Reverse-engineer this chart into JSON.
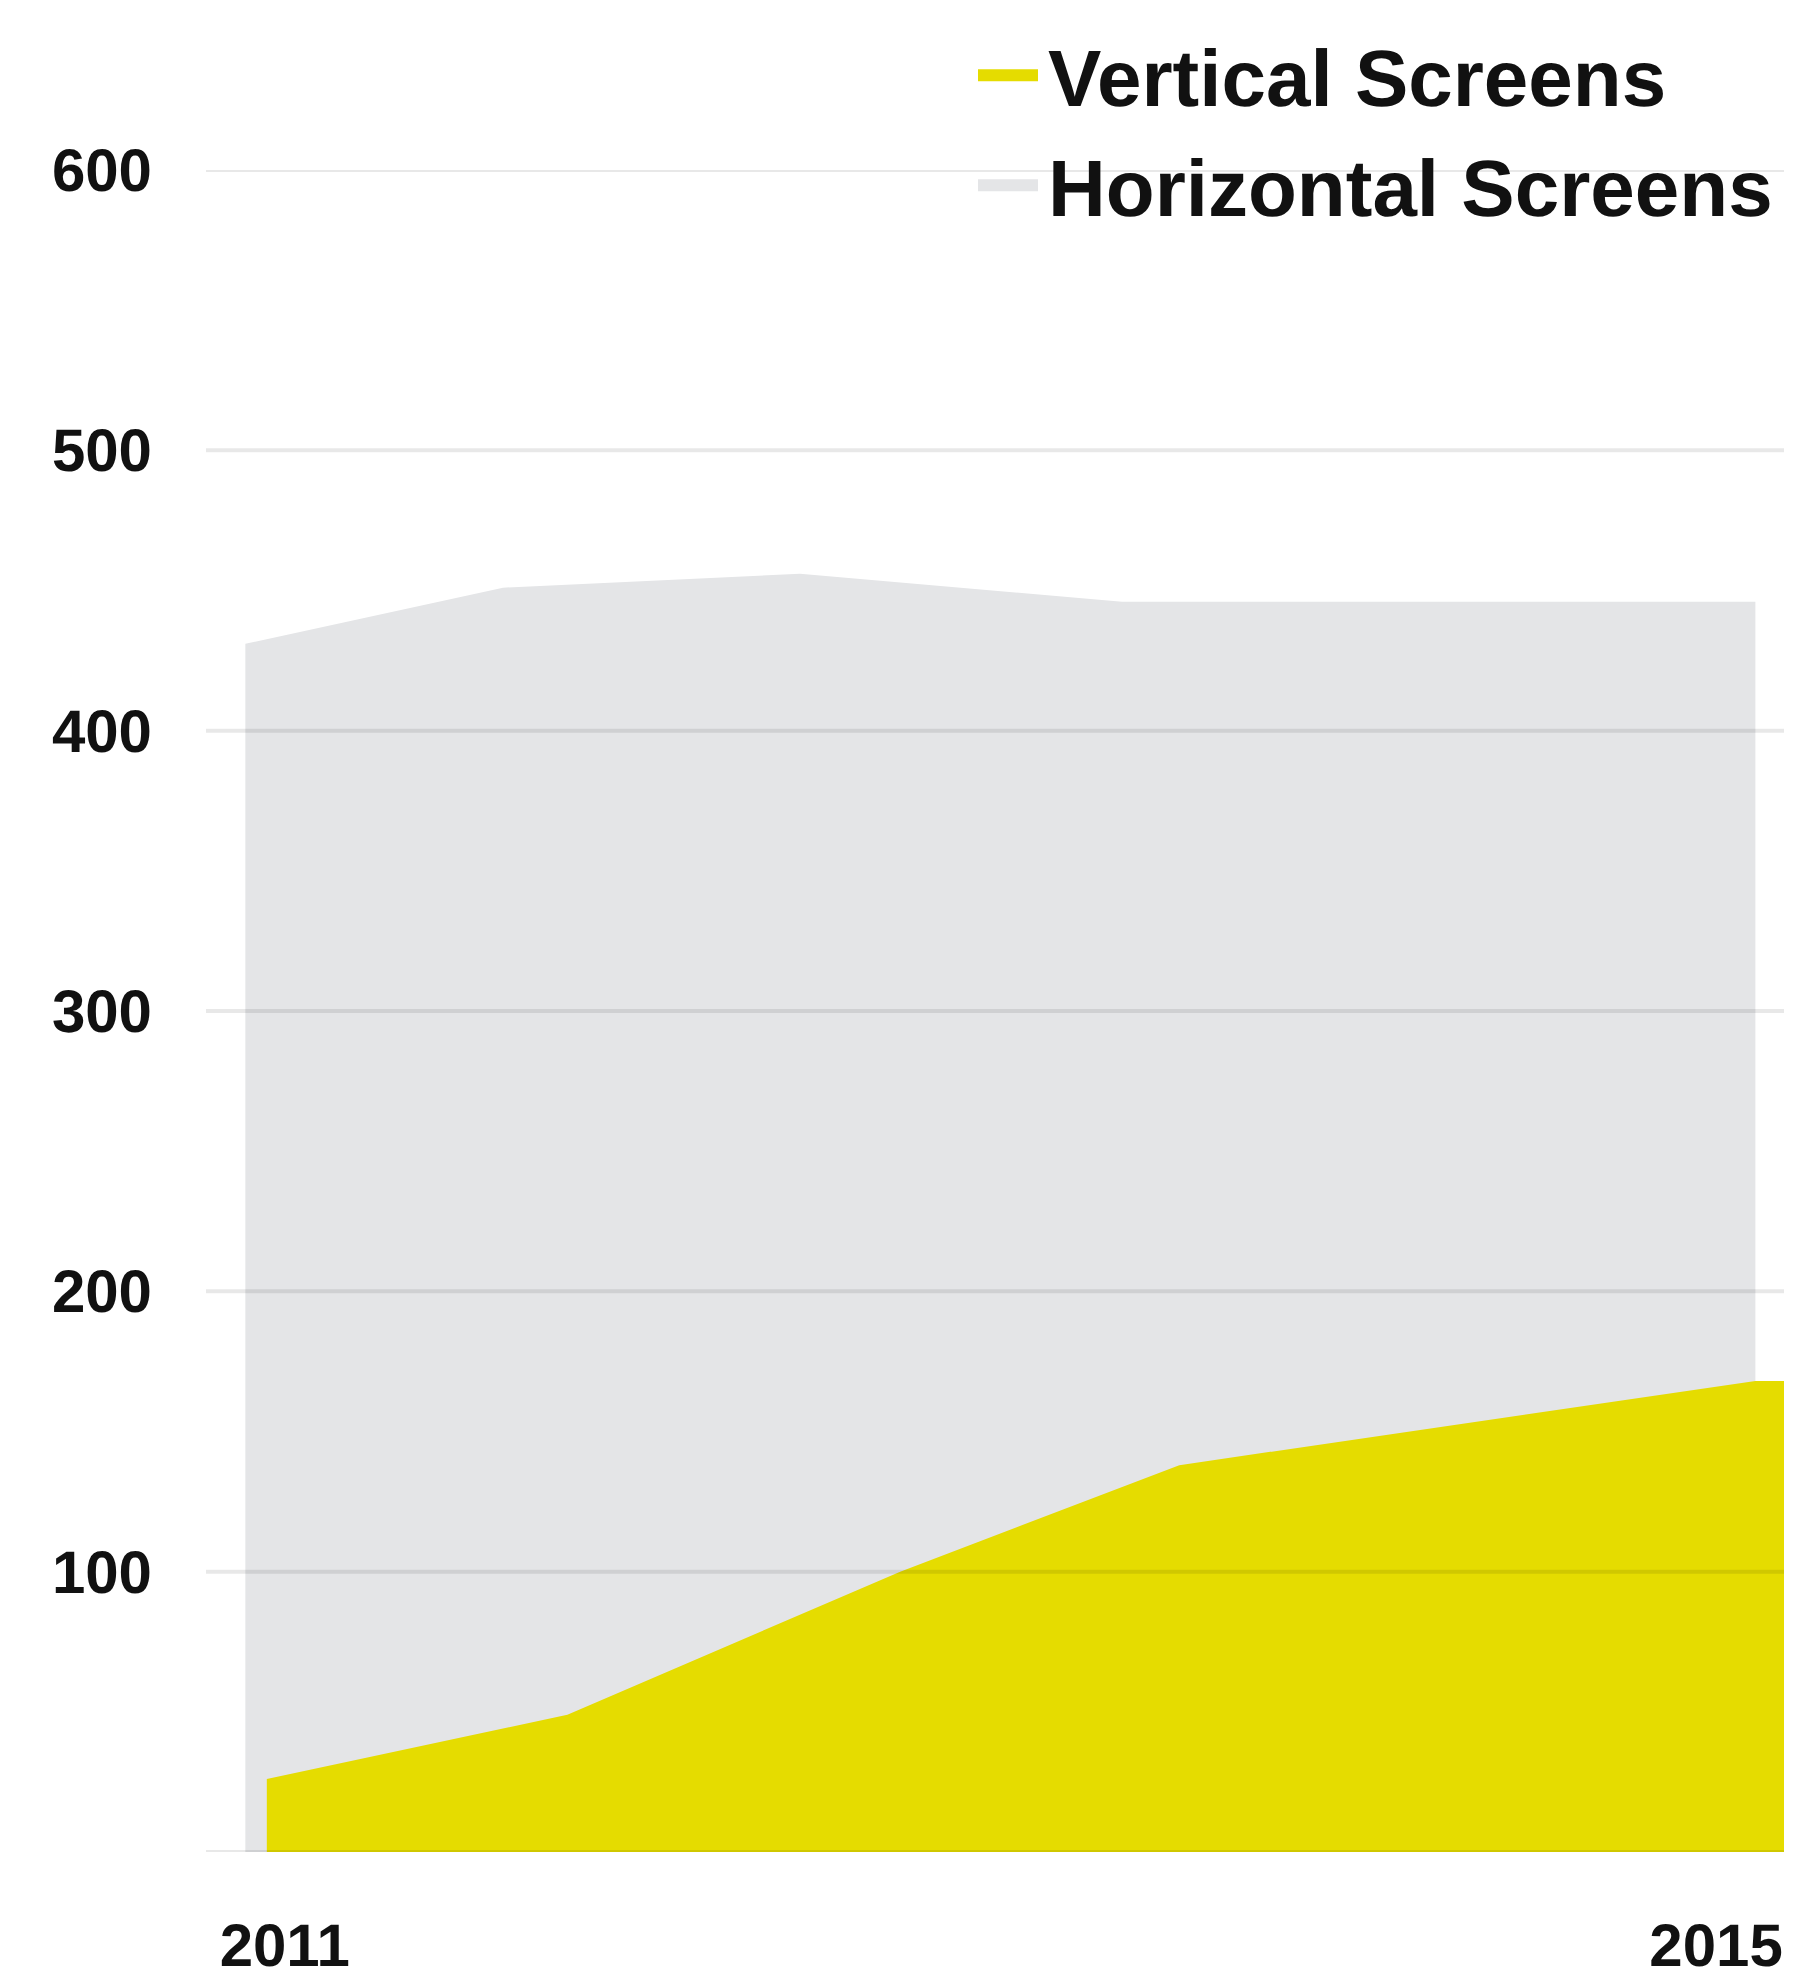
{
  "chart_data": {
    "type": "area",
    "series": [
      {
        "name": "Horizontal Screens",
        "color": "#e4e5e7",
        "x": [
          2010.89,
          2011.61,
          2012.44,
          2013.34,
          2015.11
        ],
        "values": [
          431,
          451,
          456,
          446,
          446
        ]
      },
      {
        "name": "Vertical Screens",
        "color": "#e5dc00",
        "x": [
          2010.95,
          2011.79,
          2012.72,
          2013.5,
          2015.11,
          2015.19
        ],
        "values": [
          26,
          49,
          100,
          138,
          168,
          168
        ]
      }
    ],
    "xlim": [
      2010.78,
      2015.19
    ],
    "xticks": [
      2011,
      2015
    ],
    "ylim": [
      0,
      600
    ],
    "yticks": [
      {
        "value": 0,
        "label": null
      },
      100,
      200,
      300,
      400,
      500,
      600
    ],
    "grid": "y",
    "legend": "top right"
  }
}
